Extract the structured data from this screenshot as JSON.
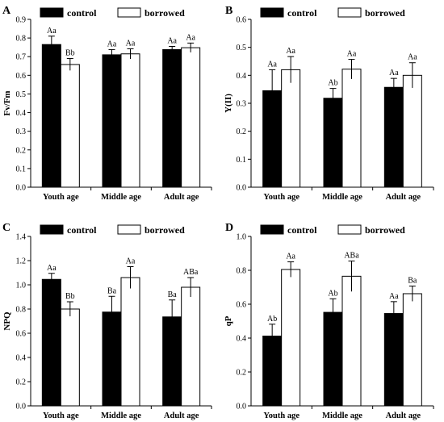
{
  "chart_data": [
    {
      "panel": "A",
      "type": "bar",
      "ylabel": "Fv/Fm",
      "ylim": [
        0,
        0.9
      ],
      "yticks": [
        0.0,
        0.1,
        0.2,
        0.3,
        0.4,
        0.5,
        0.6,
        0.7,
        0.8,
        0.9
      ],
      "ytick_labels": [
        "0.0",
        "0.1",
        "0.2",
        "0.3",
        "0.4",
        "0.5",
        "0.6",
        "0.7",
        "0.8",
        "0.9"
      ],
      "categories": [
        "Youth age",
        "Middle age",
        "Adult age"
      ],
      "legend": "top",
      "series": [
        {
          "name": "control",
          "color": "#000000",
          "values": [
            0.765,
            0.71,
            0.738
          ],
          "errors": [
            0.045,
            0.028,
            0.017
          ],
          "labels": [
            "Aa",
            "Aa",
            "Aa"
          ]
        },
        {
          "name": "borrowed",
          "color": "#ffffff",
          "values": [
            0.658,
            0.715,
            0.748
          ],
          "errors": [
            0.032,
            0.027,
            0.025
          ],
          "labels": [
            "Bb",
            "Aa",
            "Aa"
          ]
        }
      ]
    },
    {
      "panel": "B",
      "type": "bar",
      "ylabel": "Y(II)",
      "ylim": [
        0,
        0.6
      ],
      "yticks": [
        0.0,
        0.1,
        0.2,
        0.3,
        0.4,
        0.5,
        0.6
      ],
      "ytick_labels": [
        "0.0",
        "0.1",
        "0.2",
        "0.3",
        "0.4",
        "0.5",
        "0.6"
      ],
      "categories": [
        "Youth age",
        "Middle age",
        "Adult age"
      ],
      "legend": "top",
      "series": [
        {
          "name": "control",
          "color": "#000000",
          "values": [
            0.345,
            0.318,
            0.357
          ],
          "errors": [
            0.075,
            0.035,
            0.032
          ],
          "labels": [
            "Aa",
            "Ab",
            "Aa"
          ]
        },
        {
          "name": "borrowed",
          "color": "#ffffff",
          "values": [
            0.42,
            0.422,
            0.4
          ],
          "errors": [
            0.047,
            0.035,
            0.045
          ],
          "labels": [
            "Aa",
            "Aa",
            "Aa"
          ]
        }
      ]
    },
    {
      "panel": "C",
      "type": "bar",
      "ylabel": "NPQ",
      "ylim": [
        0,
        1.4
      ],
      "yticks": [
        0.0,
        0.2,
        0.4,
        0.6,
        0.8,
        1.0,
        1.2,
        1.4
      ],
      "ytick_labels": [
        "0.0",
        "0.2",
        "0.4",
        "0.6",
        "0.8",
        "1.0",
        "1.2",
        "1.4"
      ],
      "categories": [
        "Youth age",
        "Middle age",
        "Adult age"
      ],
      "legend": "top",
      "series": [
        {
          "name": "control",
          "color": "#000000",
          "values": [
            1.045,
            0.775,
            0.735
          ],
          "errors": [
            0.05,
            0.13,
            0.14
          ],
          "labels": [
            "Aa",
            "Ba",
            "Ba"
          ]
        },
        {
          "name": "borrowed",
          "color": "#ffffff",
          "values": [
            0.8,
            1.06,
            0.98
          ],
          "errors": [
            0.06,
            0.09,
            0.08
          ],
          "labels": [
            "Bb",
            "Aa",
            "ABa"
          ]
        }
      ]
    },
    {
      "panel": "D",
      "type": "bar",
      "ylabel": "qP",
      "ylim": [
        0,
        1.0
      ],
      "yticks": [
        0.0,
        0.2,
        0.4,
        0.6,
        0.8,
        1.0
      ],
      "ytick_labels": [
        "0.0",
        "0.2",
        "0.4",
        "0.6",
        "0.8",
        "1.0"
      ],
      "categories": [
        "Youth age",
        "Middle age",
        "Adult age"
      ],
      "legend": "top",
      "series": [
        {
          "name": "control",
          "color": "#000000",
          "values": [
            0.412,
            0.552,
            0.545
          ],
          "errors": [
            0.07,
            0.08,
            0.07
          ],
          "labels": [
            "Ab",
            "Ab",
            "Aa"
          ]
        },
        {
          "name": "borrowed",
          "color": "#ffffff",
          "values": [
            0.805,
            0.765,
            0.662
          ],
          "errors": [
            0.045,
            0.09,
            0.045
          ],
          "labels": [
            "Aa",
            "ABa",
            "Ba"
          ]
        }
      ]
    }
  ]
}
